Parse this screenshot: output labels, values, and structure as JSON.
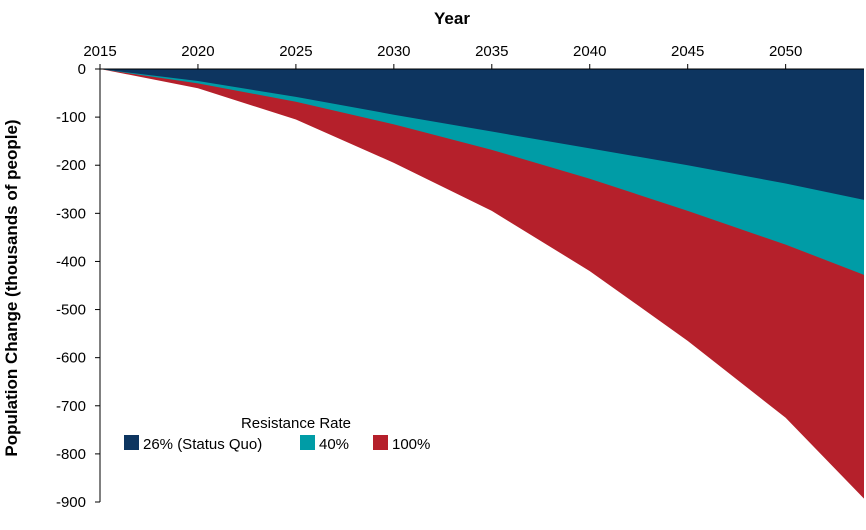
{
  "chart_data": {
    "type": "area",
    "xlabel": "Year",
    "ylabel": "Population Change (thousands of people)",
    "x_axis_position": "top",
    "x_ticks": [
      "2015",
      "2020",
      "2025",
      "2030",
      "2035",
      "2040",
      "2045",
      "2050"
    ],
    "y_ticks": [
      "0",
      "-100",
      "-200",
      "-300",
      "-400",
      "-500",
      "-600",
      "-700",
      "-800",
      "-900"
    ],
    "xlim": [
      2015,
      2054
    ],
    "ylim": [
      -900,
      0
    ],
    "x": [
      2015,
      2020,
      2025,
      2030,
      2035,
      2040,
      2045,
      2050,
      2054
    ],
    "series": [
      {
        "name": "26% (Status Quo)",
        "color": "#0d3560",
        "values": [
          0,
          -25,
          -58,
          -95,
          -130,
          -165,
          -200,
          -238,
          -272
        ]
      },
      {
        "name": "40%",
        "color": "#009ca6",
        "values": [
          0,
          -30,
          -68,
          -115,
          -168,
          -228,
          -295,
          -365,
          -428
        ]
      },
      {
        "name": "100%",
        "color": "#b5202b",
        "values": [
          0,
          -40,
          -105,
          -195,
          -295,
          -420,
          -565,
          -725,
          -893
        ]
      }
    ],
    "legend": {
      "title": "Resistance Rate",
      "placement": "bottom-left"
    },
    "grid": false
  }
}
